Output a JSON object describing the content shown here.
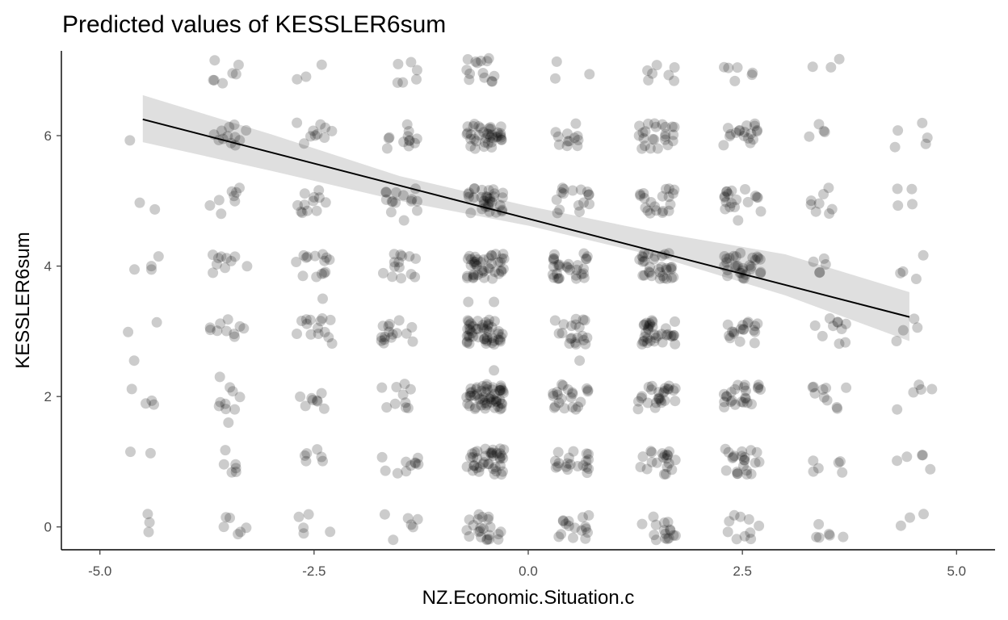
{
  "chart_data": {
    "type": "scatter",
    "title": "Predicted values of KESSLER6sum",
    "xlabel": "NZ.Economic.Situation.c",
    "ylabel": "KESSLER6sum",
    "xlim": [
      -5.45,
      5.45
    ],
    "ylim": [
      -0.35,
      7.3
    ],
    "x_ticks": [
      -5.0,
      -2.5,
      0.0,
      2.5,
      5.0
    ],
    "x_tick_labels": [
      "-5.0",
      "-2.5",
      "0.0",
      "2.5",
      "5.0"
    ],
    "y_ticks": [
      0,
      2,
      4,
      6
    ],
    "y_tick_labels": [
      "0",
      "2",
      "4",
      "6"
    ],
    "grid": false,
    "point_color": "#000000",
    "point_opacity": 0.2,
    "x_levels": [
      -4.5,
      -3.5,
      -2.5,
      -1.5,
      -0.5,
      0.5,
      1.5,
      2.5,
      3.5,
      4.5
    ],
    "y_levels": [
      0,
      1,
      2,
      3,
      4,
      5,
      6,
      7
    ],
    "counts": [
      [
        3,
        2,
        4,
        2,
        3,
        2,
        1,
        0
      ],
      [
        6,
        6,
        8,
        10,
        10,
        8,
        12,
        7
      ],
      [
        5,
        6,
        8,
        14,
        14,
        12,
        10,
        3
      ],
      [
        6,
        10,
        10,
        16,
        14,
        14,
        12,
        6
      ],
      [
        22,
        40,
        55,
        48,
        42,
        32,
        38,
        14
      ],
      [
        16,
        20,
        22,
        20,
        30,
        16,
        12,
        3
      ],
      [
        16,
        20,
        26,
        34,
        32,
        20,
        24,
        7
      ],
      [
        10,
        22,
        24,
        18,
        30,
        18,
        18,
        6
      ],
      [
        6,
        6,
        10,
        10,
        4,
        8,
        4,
        3
      ],
      [
        3,
        5,
        5,
        3,
        4,
        4,
        5,
        0
      ]
    ],
    "extra_points": [
      {
        "x": -4.4,
        "y": 4.0
      },
      {
        "x": -4.6,
        "y": 2.55
      },
      {
        "x": -3.5,
        "y": 1.6
      },
      {
        "x": -3.6,
        "y": 2.3
      },
      {
        "x": -2.4,
        "y": 3.5
      },
      {
        "x": -1.45,
        "y": 4.7
      },
      {
        "x": -0.7,
        "y": 3.45
      },
      {
        "x": -0.4,
        "y": 3.45
      },
      {
        "x": -0.4,
        "y": 2.4
      },
      {
        "x": 0.6,
        "y": 2.55
      },
      {
        "x": 2.45,
        "y": 4.7
      },
      {
        "x": 3.4,
        "y": 3.9
      },
      {
        "x": 4.3,
        "y": 2.85
      }
    ],
    "fit_line": {
      "x": [
        -4.5,
        4.45
      ],
      "y": [
        6.25,
        3.22
      ]
    },
    "confidence_band": {
      "x": [
        -4.5,
        -3.0,
        -1.5,
        0.0,
        1.5,
        3.0,
        4.45
      ],
      "lower": [
        5.9,
        5.46,
        5.0,
        4.62,
        4.15,
        3.55,
        2.85
      ],
      "upper": [
        6.62,
        6.02,
        5.38,
        4.92,
        4.52,
        4.18,
        3.6
      ]
    }
  }
}
